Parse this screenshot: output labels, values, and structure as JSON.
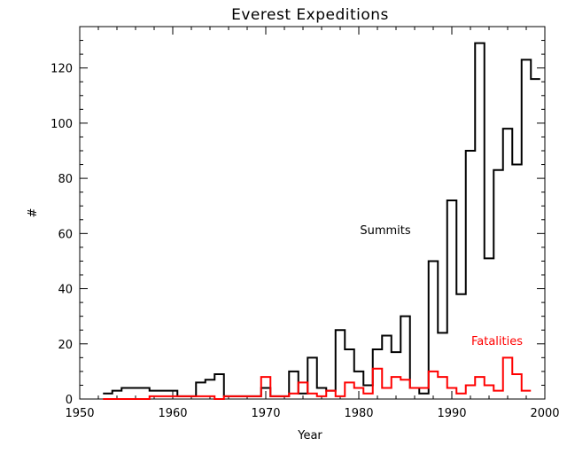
{
  "chart_data": {
    "type": "line",
    "step": true,
    "title": "Everest Expeditions",
    "xlabel": "Year",
    "ylabel": "#",
    "xlim": [
      1950,
      2000
    ],
    "ylim": [
      0,
      135
    ],
    "x_ticks": [
      1950,
      1960,
      1970,
      1980,
      1990,
      2000
    ],
    "y_ticks": [
      0,
      20,
      40,
      60,
      80,
      100,
      120
    ],
    "grid": false,
    "legend": "none",
    "series": [
      {
        "name": "Summits",
        "color": "#000000",
        "x": [
          1953,
          1954,
          1955,
          1956,
          1957,
          1958,
          1959,
          1960,
          1961,
          1962,
          1963,
          1964,
          1965,
          1966,
          1967,
          1968,
          1969,
          1970,
          1971,
          1972,
          1973,
          1974,
          1975,
          1976,
          1977,
          1978,
          1979,
          1980,
          1981,
          1982,
          1983,
          1984,
          1985,
          1986,
          1987,
          1988,
          1989,
          1990,
          1991,
          1992,
          1993,
          1994,
          1995,
          1996,
          1997,
          1998,
          1999
        ],
        "y": [
          2,
          3,
          4,
          4,
          4,
          3,
          3,
          3,
          1,
          1,
          6,
          7,
          9,
          1,
          1,
          1,
          1,
          4,
          1,
          1,
          10,
          2,
          15,
          4,
          3,
          25,
          18,
          10,
          5,
          18,
          23,
          17,
          30,
          4,
          2,
          50,
          24,
          72,
          38,
          90,
          129,
          51,
          83,
          98,
          85,
          123,
          116
        ]
      },
      {
        "name": "Fatalities",
        "color": "#ff0000",
        "x": [
          1953,
          1954,
          1955,
          1956,
          1957,
          1958,
          1959,
          1960,
          1961,
          1962,
          1963,
          1964,
          1965,
          1966,
          1967,
          1968,
          1969,
          1970,
          1971,
          1972,
          1973,
          1974,
          1975,
          1976,
          1977,
          1978,
          1979,
          1980,
          1981,
          1982,
          1983,
          1984,
          1985,
          1986,
          1987,
          1988,
          1989,
          1990,
          1991,
          1992,
          1993,
          1994,
          1995,
          1996,
          1997,
          1998
        ],
        "y": [
          0,
          0,
          0,
          0,
          0,
          1,
          1,
          1,
          1,
          1,
          1,
          1,
          0,
          1,
          1,
          1,
          1,
          8,
          1,
          1,
          2,
          6,
          2,
          1,
          3,
          1,
          6,
          4,
          2,
          11,
          4,
          8,
          7,
          4,
          4,
          10,
          8,
          4,
          2,
          5,
          8,
          5,
          3,
          15,
          9,
          3
        ]
      }
    ]
  }
}
